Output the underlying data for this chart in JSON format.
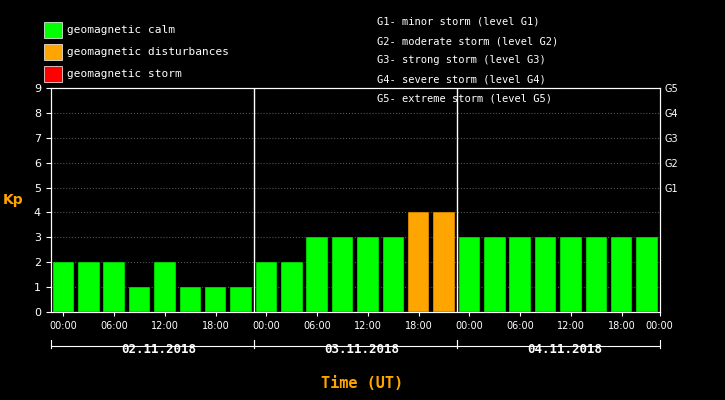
{
  "bg_color": "#000000",
  "plot_bg_color": "#000000",
  "text_color": "#ffffff",
  "orange_color": "#FFA500",
  "green_color": "#00FF00",
  "red_color": "#FF0000",
  "kp_values": [
    2,
    2,
    2,
    1,
    2,
    1,
    1,
    1,
    2,
    2,
    3,
    3,
    3,
    3,
    4,
    4,
    3,
    3,
    3,
    3,
    3,
    3,
    3,
    3
  ],
  "bar_colors": [
    "#00FF00",
    "#00FF00",
    "#00FF00",
    "#00FF00",
    "#00FF00",
    "#00FF00",
    "#00FF00",
    "#00FF00",
    "#00FF00",
    "#00FF00",
    "#00FF00",
    "#00FF00",
    "#00FF00",
    "#00FF00",
    "#FFA500",
    "#FFA500",
    "#00FF00",
    "#00FF00",
    "#00FF00",
    "#00FF00",
    "#00FF00",
    "#00FF00",
    "#00FF00",
    "#00FF00"
  ],
  "ylim": [
    0,
    9
  ],
  "yticks": [
    0,
    1,
    2,
    3,
    4,
    5,
    6,
    7,
    8,
    9
  ],
  "ylabel": "Kp",
  "xlabel": "Time (UT)",
  "day_labels": [
    "02.11.2018",
    "03.11.2018",
    "04.11.2018"
  ],
  "xtick_labels": [
    "00:00",
    "06:00",
    "12:00",
    "18:00",
    "00:00",
    "06:00",
    "12:00",
    "18:00",
    "00:00",
    "06:00",
    "12:00",
    "18:00",
    "00:00"
  ],
  "right_labels": [
    "G5",
    "G4",
    "G3",
    "G2",
    "G1"
  ],
  "right_label_kp": [
    9,
    8,
    7,
    6,
    5
  ],
  "legend_items": [
    {
      "label": "geomagnetic calm",
      "color": "#00FF00"
    },
    {
      "label": "geomagnetic disturbances",
      "color": "#FFA500"
    },
    {
      "label": "geomagnetic storm",
      "color": "#FF0000"
    }
  ],
  "right_legend_lines": [
    "G1- minor storm (level G1)",
    "G2- moderate storm (level G2)",
    "G3- strong storm (level G3)",
    "G4- severe storm (level G4)",
    "G5- extreme storm (level G5)"
  ],
  "dot_color": "#555555",
  "separator_color": "#ffffff",
  "bar_width": 0.85
}
